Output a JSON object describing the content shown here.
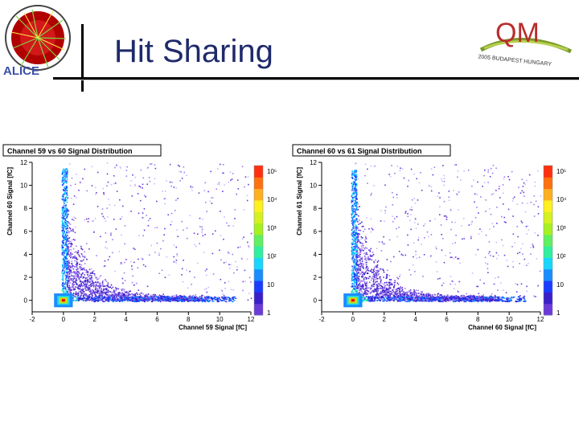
{
  "slide": {
    "title": "Hit Sharing"
  },
  "logos": {
    "left_text": "ALICE",
    "right_text": "QM",
    "right_subtext": "2005 BUDAPEST HUNGARY"
  },
  "chart_data": [
    {
      "type": "heatmap",
      "title": "Channel 59 vs 60 Signal Distribution",
      "xlabel": "Channel 59 Signal [fC]",
      "ylabel": "Channel 60 Signal [fC]",
      "xlim": [
        -2,
        12
      ],
      "ylim": [
        -1,
        12
      ],
      "xticks": [
        "-2",
        "0",
        "2",
        "4",
        "6",
        "8",
        "10",
        "12"
      ],
      "yticks": [
        "0",
        "2",
        "4",
        "6",
        "8",
        "10",
        "12"
      ],
      "color_scale": "log",
      "zticks": [
        "1",
        "10",
        "10²",
        "10³",
        "10⁴",
        "10⁵"
      ]
    },
    {
      "type": "heatmap",
      "title": "Channel 60 vs 61 Signal Distribution",
      "xlabel": "Channel 60 Signal [fC]",
      "ylabel": "Channel 61 Signal [fC]",
      "xlim": [
        -2,
        12
      ],
      "ylim": [
        -1,
        12
      ],
      "xticks": [
        "-2",
        "0",
        "2",
        "4",
        "6",
        "8",
        "10",
        "12"
      ],
      "yticks": [
        "0",
        "2",
        "4",
        "6",
        "8",
        "10",
        "12"
      ],
      "color_scale": "log",
      "zticks": [
        "1",
        "10",
        "10²",
        "10³",
        "10⁴",
        "10⁵"
      ]
    }
  ]
}
